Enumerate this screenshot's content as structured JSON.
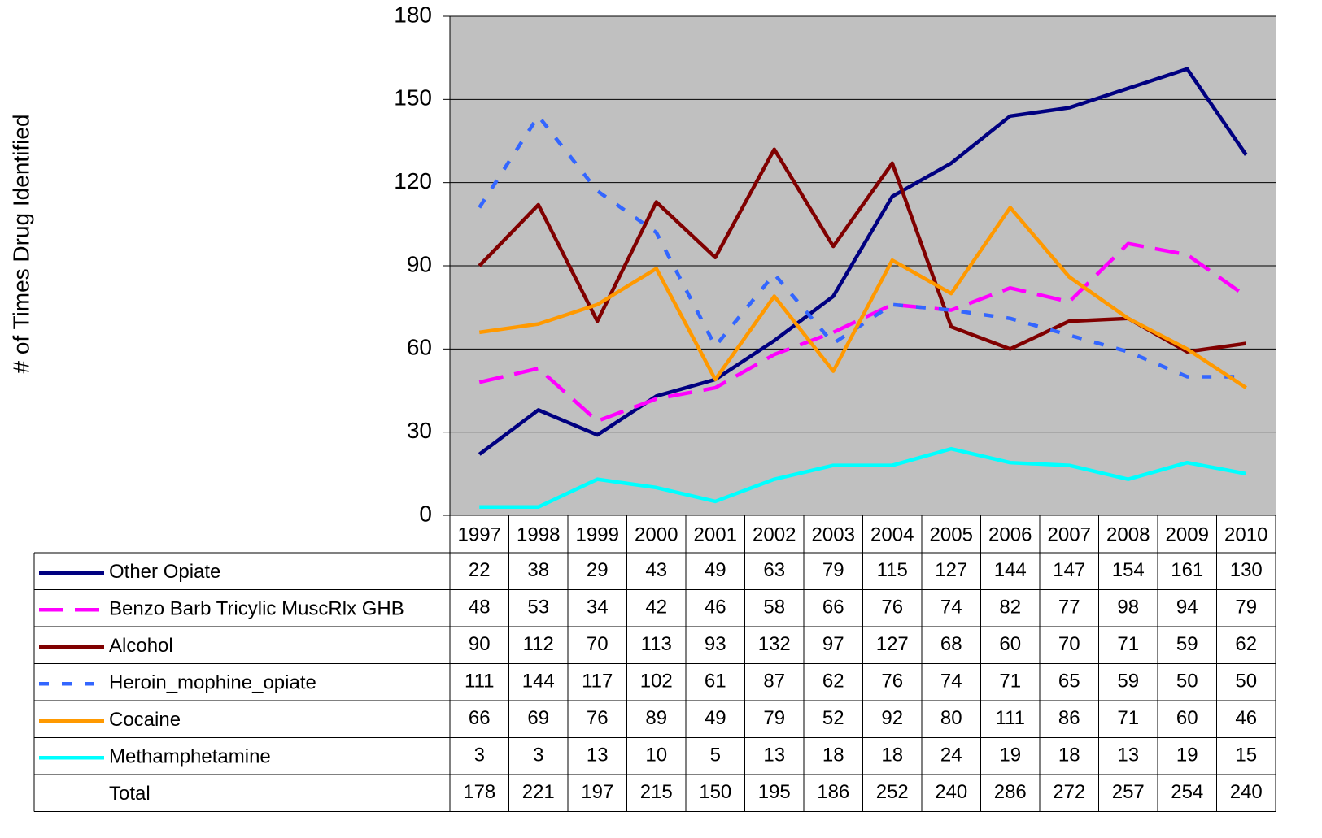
{
  "chart_data": {
    "type": "line",
    "y_label": "# of Times Drug Identified",
    "categories": [
      "1997",
      "1998",
      "1999",
      "2000",
      "2001",
      "2002",
      "2003",
      "2004",
      "2005",
      "2006",
      "2007",
      "2008",
      "2009",
      "2010"
    ],
    "ylim": [
      0,
      180
    ],
    "yticks": [
      0,
      30,
      60,
      90,
      120,
      150,
      180
    ],
    "grid": true,
    "series": [
      {
        "name": "Other Opiate",
        "color": "#000080",
        "line_style": "solid",
        "values": [
          22,
          38,
          29,
          43,
          49,
          63,
          79,
          115,
          127,
          144,
          147,
          154,
          161,
          130
        ]
      },
      {
        "name": "Benzo Barb Tricylic MuscRlx GHB",
        "color": "#ff00ff",
        "line_style": "long-dash",
        "values": [
          48,
          53,
          34,
          42,
          46,
          58,
          66,
          76,
          74,
          82,
          77,
          98,
          94,
          79
        ]
      },
      {
        "name": "Alcohol",
        "color": "#800000",
        "line_style": "solid",
        "values": [
          90,
          112,
          70,
          113,
          93,
          132,
          97,
          127,
          68,
          60,
          70,
          71,
          59,
          62
        ]
      },
      {
        "name": "Heroin_mophine_opiate",
        "color": "#3366ff",
        "line_style": "short-dash",
        "values": [
          111,
          144,
          117,
          102,
          61,
          87,
          62,
          76,
          74,
          71,
          65,
          59,
          50,
          50
        ]
      },
      {
        "name": "Cocaine",
        "color": "#ff9900",
        "line_style": "solid",
        "values": [
          66,
          69,
          76,
          89,
          49,
          79,
          52,
          92,
          80,
          111,
          86,
          71,
          60,
          46
        ]
      },
      {
        "name": "Methamphetamine",
        "color": "#00ffff",
        "line_style": "solid",
        "values": [
          3,
          3,
          13,
          10,
          5,
          13,
          18,
          18,
          24,
          19,
          18,
          13,
          19,
          15
        ]
      }
    ],
    "total": {
      "name": "Total",
      "values": [
        178,
        221,
        197,
        215,
        150,
        195,
        186,
        252,
        240,
        286,
        272,
        257,
        254,
        240
      ]
    }
  }
}
